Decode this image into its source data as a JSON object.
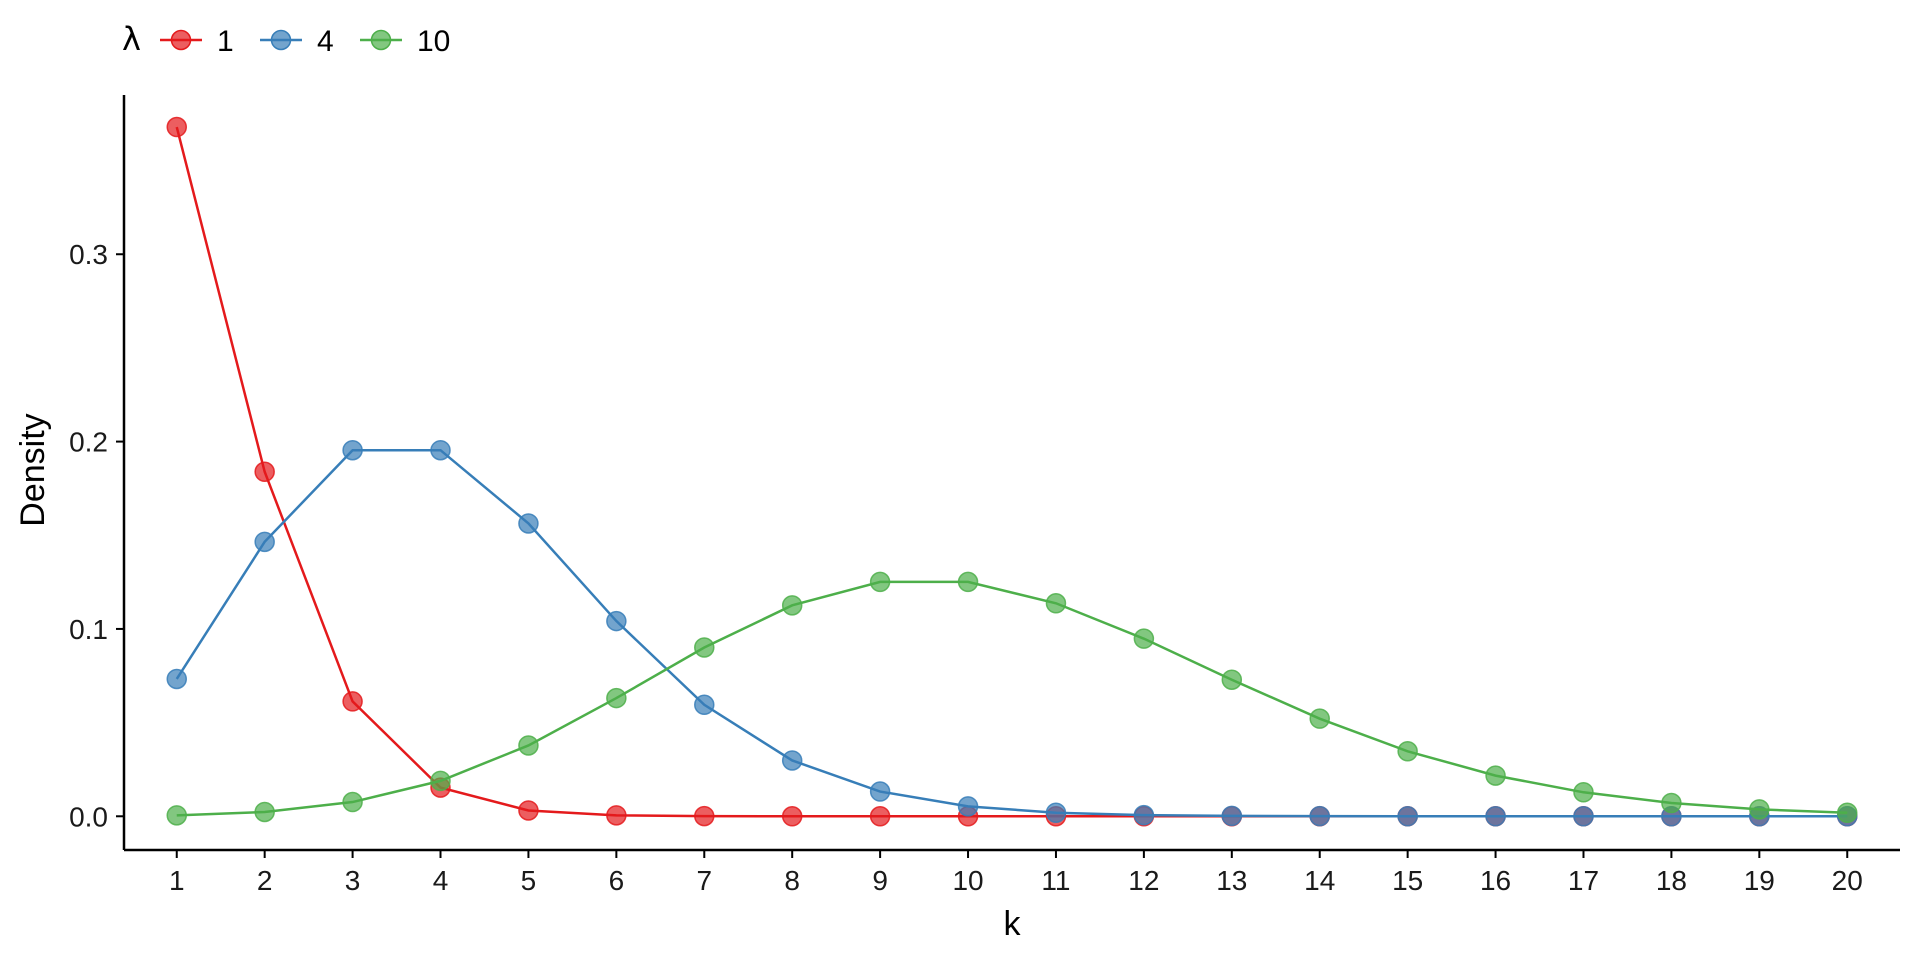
{
  "chart_data": {
    "type": "line",
    "xlabel": "k",
    "ylabel": "Density",
    "legend_title": "λ",
    "legend_position": "top-left",
    "grid": false,
    "xlim": [
      0.4,
      20.6
    ],
    "ylim": [
      -0.018,
      0.385
    ],
    "x": [
      1,
      2,
      3,
      4,
      5,
      6,
      7,
      8,
      9,
      10,
      11,
      12,
      13,
      14,
      15,
      16,
      17,
      18,
      19,
      20
    ],
    "x_ticks": [
      1,
      2,
      3,
      4,
      5,
      6,
      7,
      8,
      9,
      10,
      11,
      12,
      13,
      14,
      15,
      16,
      17,
      18,
      19,
      20
    ],
    "y_ticks": [
      0.0,
      0.1,
      0.2,
      0.3
    ],
    "y_tick_labels": [
      "0.0",
      "0.1",
      "0.2",
      "0.3"
    ],
    "series": [
      {
        "name": "1",
        "color": "#E41A1C",
        "values": [
          0.3679,
          0.1839,
          0.0613,
          0.0153,
          0.0031,
          0.0005,
          0.0001,
          0.0,
          0.0,
          0.0,
          0.0,
          0.0,
          0.0,
          0.0,
          0.0,
          0.0,
          0.0,
          0.0,
          0.0,
          0.0
        ]
      },
      {
        "name": "4",
        "color": "#377EB8",
        "values": [
          0.0733,
          0.1465,
          0.1954,
          0.1954,
          0.1563,
          0.1042,
          0.0595,
          0.0298,
          0.0132,
          0.0053,
          0.0019,
          0.0006,
          0.0002,
          0.0001,
          0.0,
          0.0,
          0.0,
          0.0,
          0.0,
          0.0
        ]
      },
      {
        "name": "10",
        "color": "#4DAF4A",
        "values": [
          0.0005,
          0.0023,
          0.0076,
          0.0189,
          0.0378,
          0.0631,
          0.0901,
          0.1126,
          0.1251,
          0.1251,
          0.1137,
          0.0948,
          0.0729,
          0.0521,
          0.0347,
          0.0217,
          0.0128,
          0.0071,
          0.0037,
          0.0019
        ]
      }
    ]
  }
}
